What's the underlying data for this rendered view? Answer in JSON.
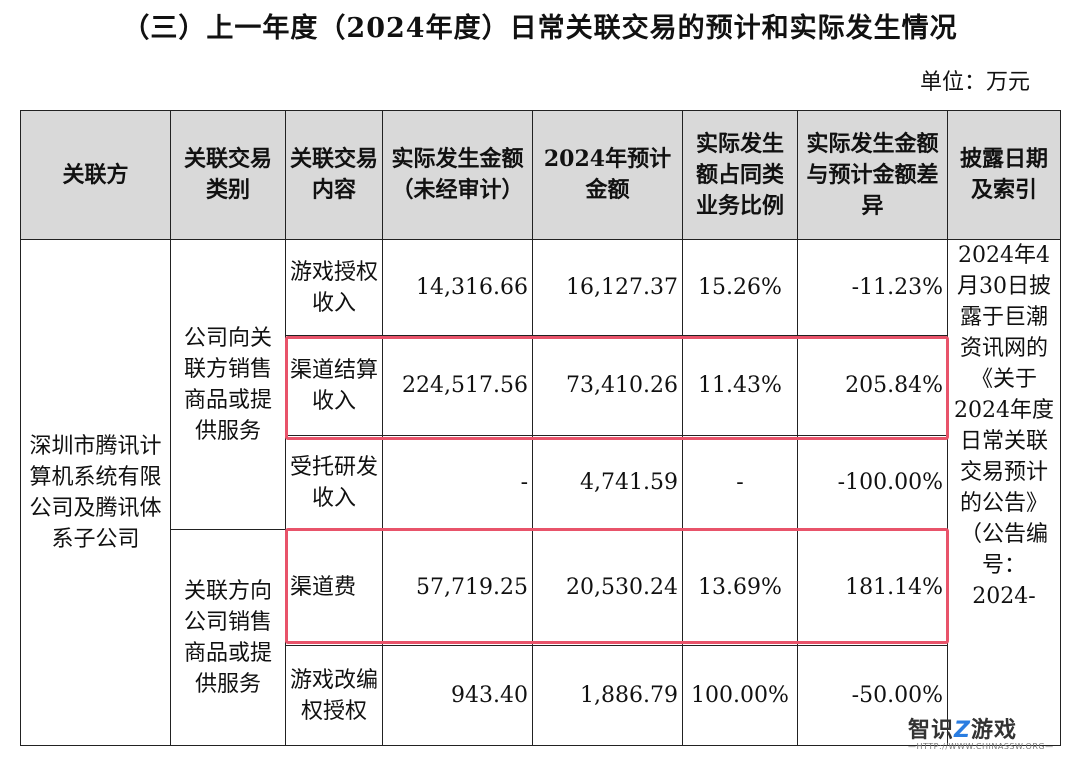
{
  "title": "（三）上一年度（2024年度）日常关联交易的预计和实际发生情况",
  "unit": "单位：万元",
  "headers": {
    "party": "关联方",
    "type": "关联交易类别",
    "content": "关联交易内容",
    "actual": "实际发生金额（未经审计）",
    "estimate": "2024年预计金额",
    "ratio": "实际发生额占同类业务比例",
    "diff": "实际发生金额与预计金额差异",
    "disclosure": "披露日期及索引"
  },
  "party": "深圳市腾讯计算机系统有限公司及腾讯体系子公司",
  "categories": {
    "sales": "公司向关联方销售商品或提供服务",
    "purchase": "关联方向公司销售商品或提供服务"
  },
  "rows": [
    {
      "content": "游戏授权收入",
      "actual": "14,316.66",
      "estimate": "16,127.37",
      "ratio": "15.26%",
      "diff": "-11.23%"
    },
    {
      "content": "渠道结算收入",
      "actual": "224,517.56",
      "estimate": "73,410.26",
      "ratio": "11.43%",
      "diff": "205.84%"
    },
    {
      "content": "受托研发收入",
      "actual": "-",
      "estimate": "4,741.59",
      "ratio": "-",
      "diff": "-100.00%"
    },
    {
      "content": "渠道费",
      "actual": "57,719.25",
      "estimate": "20,530.24",
      "ratio": "13.69%",
      "diff": "181.14%"
    },
    {
      "content": "游戏改编权授权",
      "actual": "943.40",
      "estimate": "1,886.79",
      "ratio": "100.00%",
      "diff": "-50.00%"
    }
  ],
  "disclosure": "2024年4月30日披露于巨潮资讯网的《关于2024年度日常关联交易预计的公告》（公告编号：2024-",
  "watermark": {
    "logo_a": "智识",
    "logo_z": "Z",
    "logo_b": "游戏",
    "url": "—HTTP://WWW.CHINASSW.ORG—"
  }
}
